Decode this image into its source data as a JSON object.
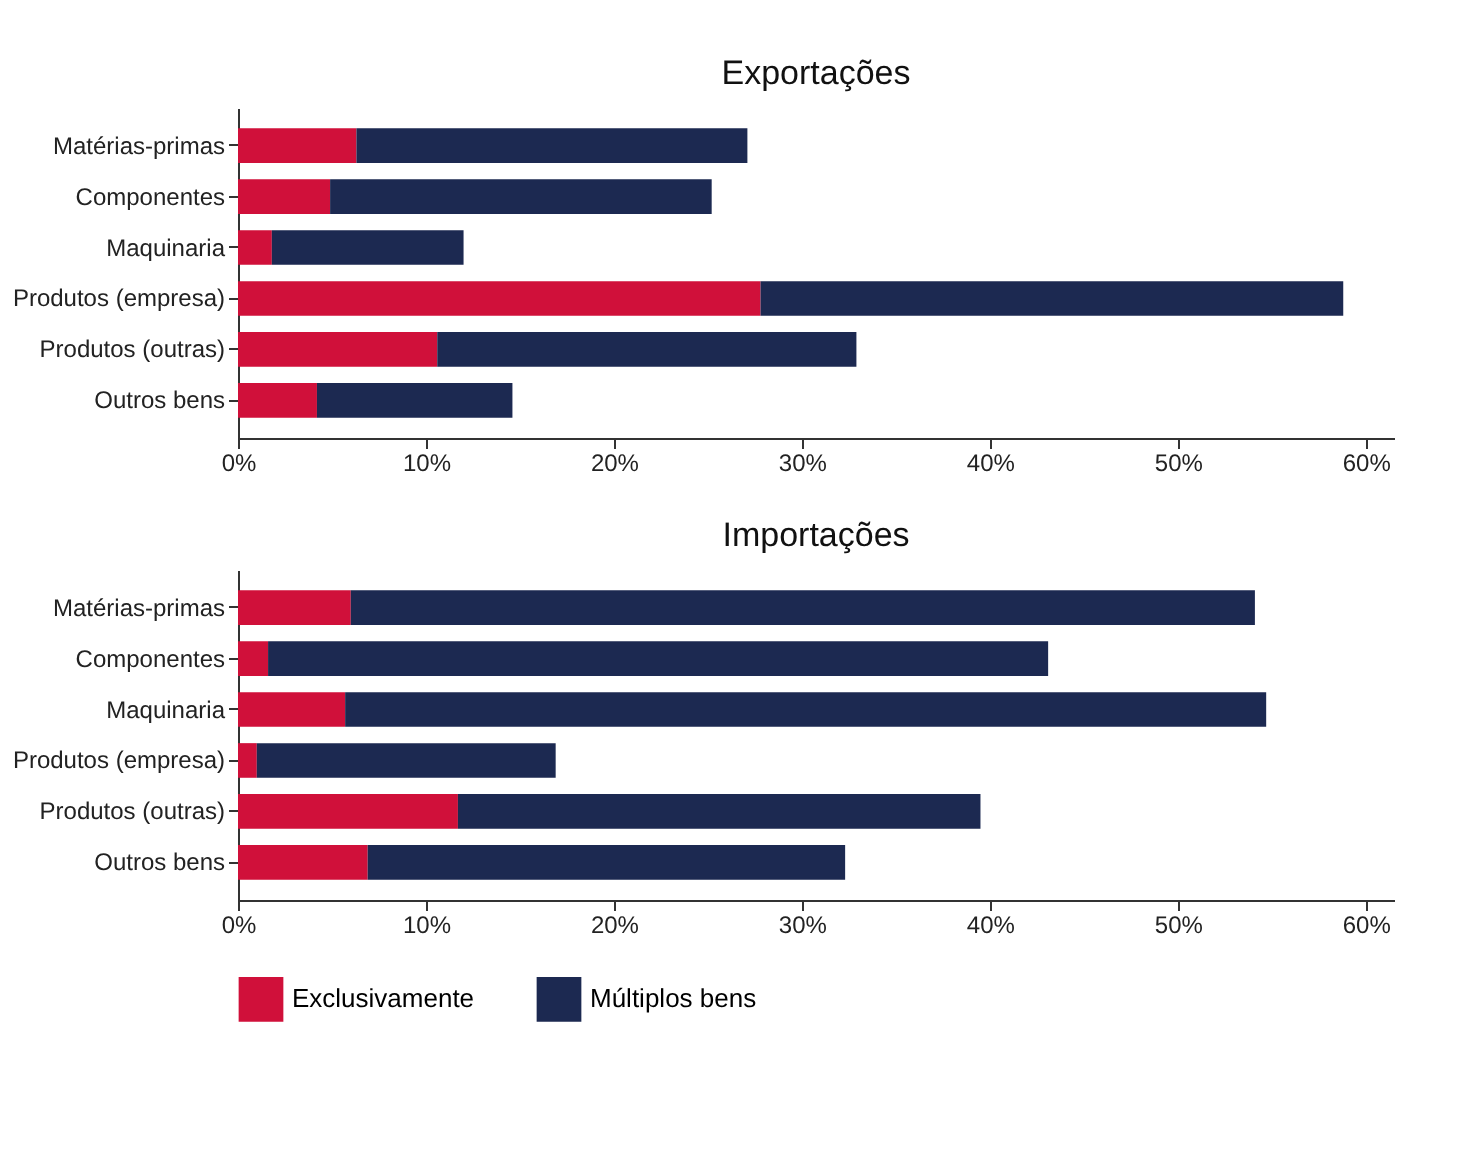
{
  "chart_data": [
    {
      "type": "bar",
      "title": "Exportações",
      "orientation": "horizontal",
      "stacked": true,
      "categories": [
        "Matérias-primas",
        "Componentes",
        "Maquinaria",
        "Produtos (empresa)",
        "Produtos (outras)",
        "Outros bens"
      ],
      "series": [
        {
          "name": "Exclusivamente",
          "color": "#d0103a",
          "values": [
            6.3,
            4.9,
            1.8,
            27.8,
            10.6,
            4.2
          ]
        },
        {
          "name": "Múltiplos bens",
          "color": "#1c2951",
          "values": [
            20.8,
            20.3,
            10.2,
            31.0,
            22.3,
            10.4
          ]
        }
      ],
      "xlim": [
        0,
        61.5
      ],
      "xticks": [
        {
          "value": 0,
          "label": "0%"
        },
        {
          "value": 10,
          "label": "10%"
        },
        {
          "value": 20,
          "label": "20%"
        },
        {
          "value": 30,
          "label": "30%"
        },
        {
          "value": 40,
          "label": "40%"
        },
        {
          "value": 50,
          "label": "50%"
        },
        {
          "value": 60,
          "label": "60%"
        }
      ],
      "grid": false,
      "legend": "bottom"
    },
    {
      "type": "bar",
      "title": "Importações",
      "orientation": "horizontal",
      "stacked": true,
      "categories": [
        "Matérias-primas",
        "Componentes",
        "Maquinaria",
        "Produtos (empresa)",
        "Produtos (outras)",
        "Outros bens"
      ],
      "series": [
        {
          "name": "Exclusivamente",
          "color": "#d0103a",
          "values": [
            6.0,
            1.6,
            5.7,
            1.0,
            11.7,
            6.9
          ]
        },
        {
          "name": "Múltiplos bens",
          "color": "#1c2951",
          "values": [
            48.1,
            41.5,
            49.0,
            15.9,
            27.8,
            25.4
          ]
        }
      ],
      "xlim": [
        0,
        61.5
      ],
      "xticks": [
        {
          "value": 0,
          "label": "0%"
        },
        {
          "value": 10,
          "label": "10%"
        },
        {
          "value": 20,
          "label": "20%"
        },
        {
          "value": 30,
          "label": "30%"
        },
        {
          "value": 40,
          "label": "40%"
        },
        {
          "value": 50,
          "label": "50%"
        },
        {
          "value": 60,
          "label": "60%"
        }
      ],
      "grid": false,
      "legend": "bottom"
    }
  ]
}
